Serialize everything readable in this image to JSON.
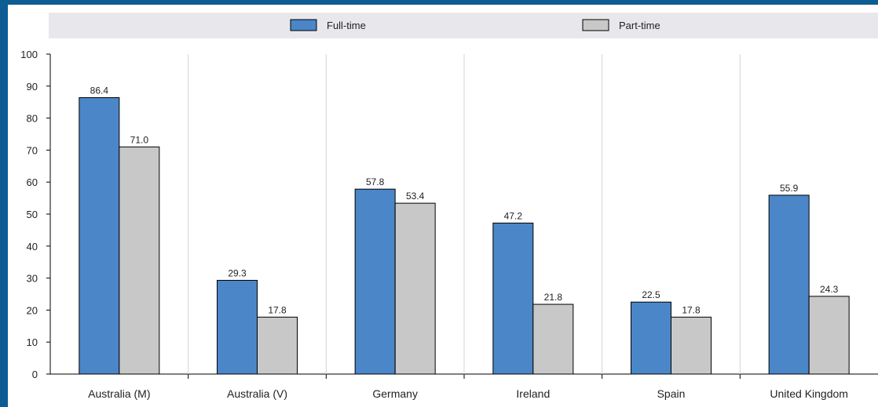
{
  "chart_data": {
    "type": "bar",
    "categories": [
      "Australia (M)",
      "Australia (V)",
      "Germany",
      "Ireland",
      "Spain",
      "United Kingdom"
    ],
    "series": [
      {
        "name": "Full-time",
        "values": [
          86.4,
          29.3,
          57.8,
          47.2,
          22.5,
          55.9
        ],
        "color": "#4a86c8"
      },
      {
        "name": "Part-time",
        "values": [
          71.0,
          17.8,
          53.4,
          21.8,
          17.8,
          24.3
        ],
        "color": "#c8c8c8"
      }
    ],
    "data_labels": [
      [
        "86.4",
        "29.3",
        "57.8",
        "47.2",
        "22.5",
        "55.9"
      ],
      [
        "71.0",
        "17.8",
        "53.4",
        "21.8",
        "17.8",
        "24.3"
      ]
    ],
    "yticks": [
      "0",
      "10",
      "20",
      "30",
      "40",
      "50",
      "60",
      "70",
      "80",
      "90",
      "100"
    ],
    "ylim": [
      0,
      100
    ],
    "grid": "vertical separators between categories",
    "legend_position": "top"
  },
  "colors": {
    "frame": "#0b5d94",
    "legend_band": "#e8e8ec",
    "bar_outline": "#000000"
  }
}
